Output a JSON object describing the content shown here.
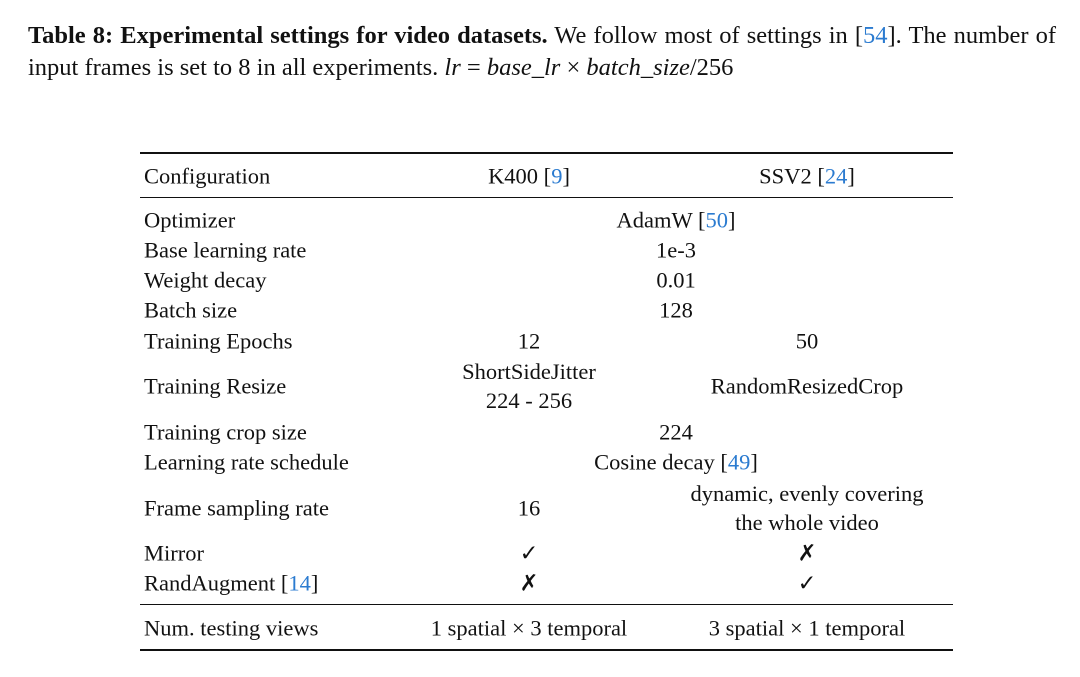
{
  "caption": {
    "label": "Table 8: Experimental settings for video datasets.",
    "text": "We follow most of settings in [",
    "cite": "54",
    "after": "]. The number of input frames is set to 8 in all experiments.",
    "math": [
      {
        "text": "lr",
        "italic": true
      },
      {
        "text": "=",
        "italic": false
      },
      {
        "text": "base_lr",
        "italic": true
      },
      {
        "text": "×",
        "italic": false
      },
      {
        "text": "batch_size",
        "italic": true
      },
      {
        "text": "/256",
        "italic": false
      }
    ]
  },
  "table": {
    "header": [
      {
        "text": "Configuration"
      },
      {
        "text": "K400 [",
        "cite": "9",
        "after": "]"
      },
      {
        "text": "SSV2 [",
        "cite": "24",
        "after": "]"
      }
    ],
    "rows": [
      {
        "label": {
          "text": "Optimizer"
        },
        "cells": [
          {
            "text": "AdamW [",
            "cite": "50",
            "after": "]"
          }
        ]
      },
      {
        "label": {
          "text": "Base learning rate"
        },
        "cells": [
          {
            "text": "1e-3"
          }
        ]
      },
      {
        "label": {
          "text": "Weight decay"
        },
        "cells": [
          {
            "text": "0.01"
          }
        ]
      },
      {
        "label": {
          "text": "Batch size"
        },
        "cells": [
          {
            "text": "128"
          }
        ]
      },
      {
        "label": {
          "text": "Training Epochs"
        },
        "cells": [
          {
            "text": "12"
          },
          {
            "text": "50"
          }
        ]
      },
      {
        "label": {
          "text": "Training Resize"
        },
        "cells": [
          {
            "lines": [
              "ShortSideJitter",
              "224 - 256"
            ]
          },
          {
            "text": "RandomResizedCrop"
          }
        ]
      },
      {
        "label": {
          "text": "Training crop size"
        },
        "cells": [
          {
            "text": "224"
          }
        ]
      },
      {
        "label": {
          "text": "Learning rate schedule"
        },
        "cells": [
          {
            "text": "Cosine decay [",
            "cite": "49",
            "after": "]"
          }
        ]
      },
      {
        "label": {
          "text": "Frame sampling rate"
        },
        "cells": [
          {
            "text": "16"
          },
          {
            "lines": [
              "dynamic, evenly covering",
              "the whole video"
            ]
          }
        ]
      },
      {
        "label": {
          "text": "Mirror"
        },
        "cells": [
          {
            "text": "✓"
          },
          {
            "text": "✗"
          }
        ]
      },
      {
        "label": {
          "text": "RandAugment [",
          "cite": "14",
          "after": "]"
        },
        "cells": [
          {
            "text": "✗"
          },
          {
            "text": "✓"
          }
        ]
      }
    ],
    "footer": {
      "label": {
        "text": "Num. testing views"
      },
      "cells": [
        {
          "text": "1 spatial × 3 temporal"
        },
        {
          "text": "3 spatial × 1 temporal"
        }
      ]
    }
  }
}
